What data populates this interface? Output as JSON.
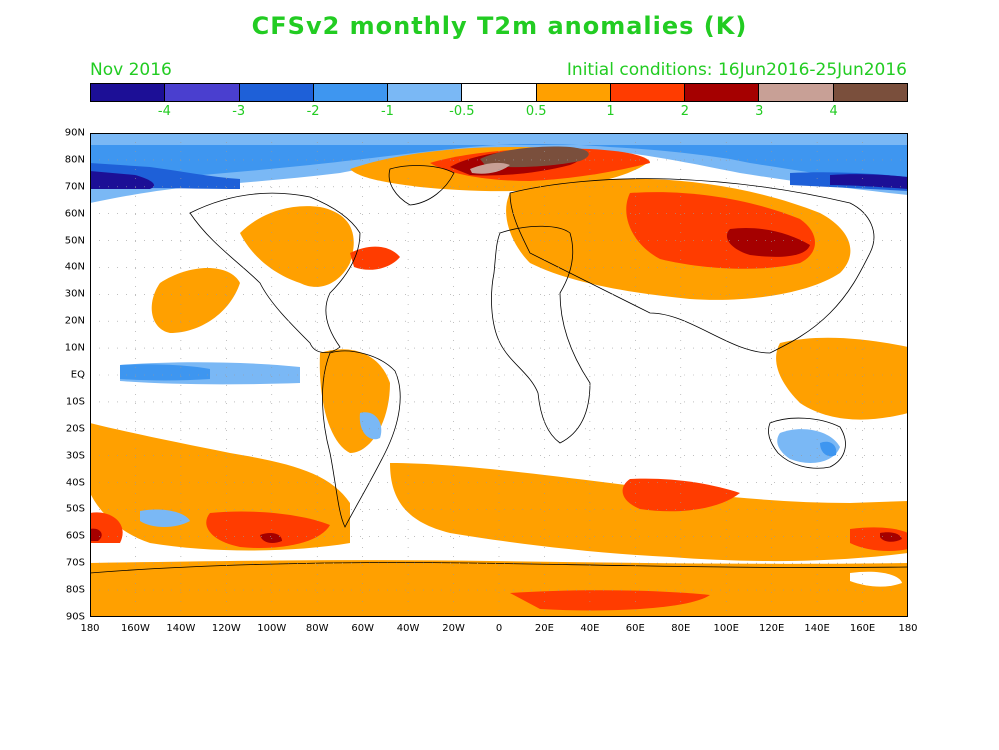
{
  "header": {
    "title": "CFSv2 monthly T2m anomalies (K)",
    "valid_month": "Nov 2016",
    "initial_conditions": "Initial conditions: 16Jun2016-25Jun2016"
  },
  "colorbar": {
    "colors": [
      "#1c0f96",
      "#4a3fcf",
      "#1e60d8",
      "#3e96f0",
      "#7ab8f5",
      "#ffffff",
      "#ffa000",
      "#ff3c00",
      "#a50000",
      "#c8a096",
      "#7a4f3c"
    ],
    "labels": [
      "-4",
      "-3",
      "-2",
      "-1",
      "-0.5",
      "0.5",
      "1",
      "2",
      "3",
      "4"
    ],
    "text_color": "#22cc22"
  },
  "axes": {
    "latitudes": [
      "90N",
      "80N",
      "70N",
      "60N",
      "50N",
      "40N",
      "30N",
      "20N",
      "10N",
      "EQ",
      "10S",
      "20S",
      "30S",
      "40S",
      "50S",
      "60S",
      "70S",
      "80S",
      "90S"
    ],
    "longitudes": [
      "180",
      "160W",
      "140W",
      "120W",
      "100W",
      "80W",
      "60W",
      "40W",
      "20W",
      "0",
      "20E",
      "40E",
      "60E",
      "80E",
      "100E",
      "120E",
      "140E",
      "160E",
      "180"
    ]
  },
  "map": {
    "type": "filled contour map of 2 m temperature anomalies",
    "projection": "equirectangular",
    "lon_range": [
      -180,
      180
    ],
    "lat_range": [
      -90,
      90
    ],
    "grid": "dotted",
    "coastlines": true
  }
}
